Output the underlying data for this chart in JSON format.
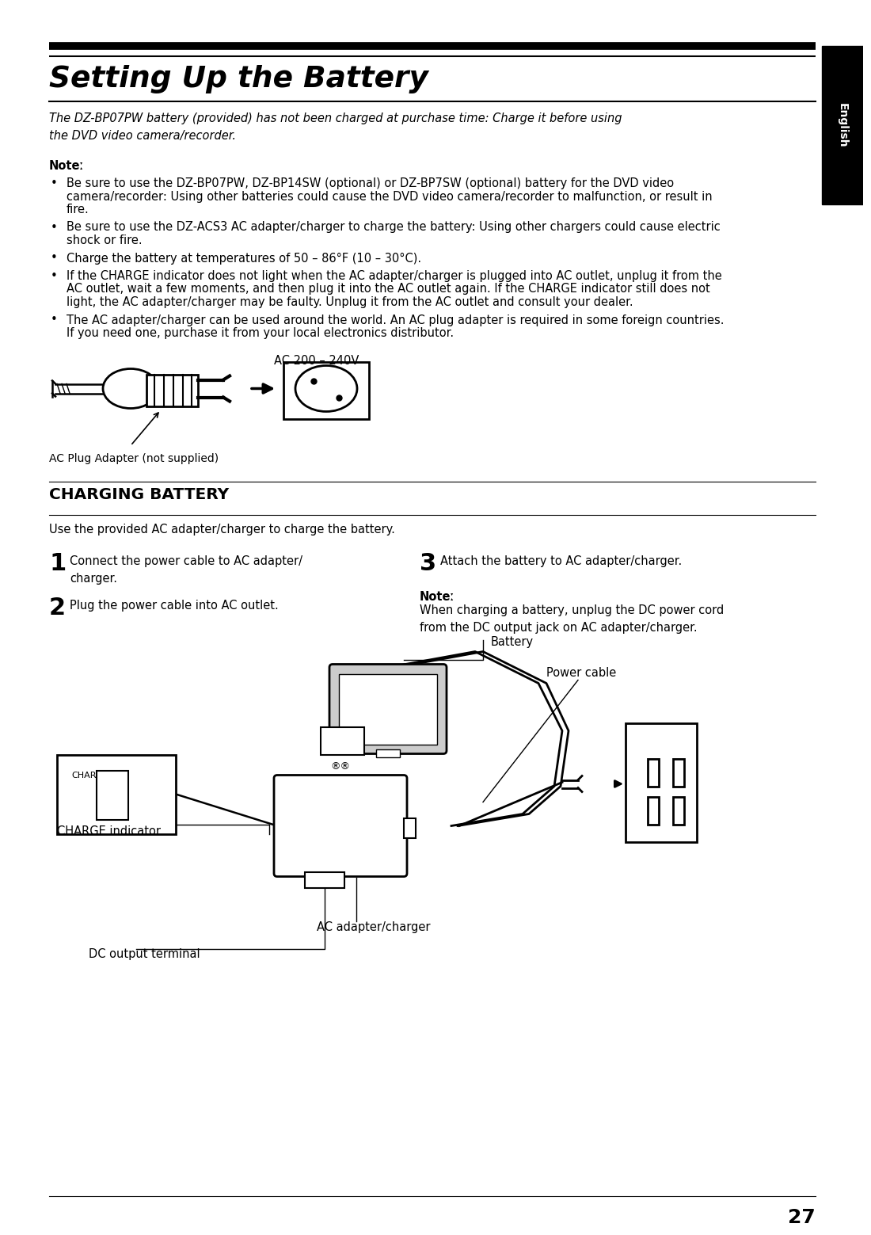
{
  "bg_color": "#ffffff",
  "title": "Setting Up the Battery",
  "sidebar_text": "English",
  "subtitle": "The DZ-BP07PW battery (provided) has not been charged at purchase time: Charge it before using\nthe DVD video camera/recorder.",
  "note_label": "Noteː",
  "bullets": [
    "Be sure to use the DZ-BP07PW, DZ-BP14SW (optional) or DZ-BP7SW (optional) battery for the DVD video\ncamera/recorder: Using other batteries could cause the DVD video camera/recorder to malfunction, or result in\nfire.",
    "Be sure to use the DZ-ACS3 AC adapter/charger to charge the battery: Using other chargers could cause electric\nshock or fire.",
    "Charge the battery at temperatures of 50 – 86°F (10 – 30°C).",
    "If the CHARGE indicator does not light when the AC adapter/charger is plugged into AC outlet, unplug it from the\nAC outlet, wait a few moments, and then plug it into the AC outlet again. If the CHARGE indicator still does not\nlight, the AC adapter/charger may be faulty. Unplug it from the AC outlet and consult your dealer.",
    "The AC adapter/charger can be used around the world. An AC plug adapter is required in some foreign countries.\nIf you need one, purchase it from your local electronics distributor."
  ],
  "ac_label": "AC 200 – 240V",
  "plug_caption": "AC Plug Adapter (not supplied)",
  "charging_title": "CHARGING BATTERY",
  "charging_intro": "Use the provided AC adapter/charger to charge the battery.",
  "step1_num": "1",
  "step1_text": "Connect the power cable to AC adapter/\ncharger.",
  "step2_num": "2",
  "step2_text": "Plug the power cable into AC outlet.",
  "step3_num": "3",
  "step3_text": "Attach the battery to AC adapter/charger.",
  "note2_label": "Noteː",
  "note2_text": "When charging a battery, unplug the DC power cord\nfrom the DC output jack on AC adapter/charger.",
  "diag_battery": "Battery",
  "diag_power_cable": "Power cable",
  "diag_charge_ind": "CHARGE indicator",
  "diag_ac_adapter": "AC adapter/charger",
  "diag_dc_terminal": "DC output terminal",
  "diag_charge_box": "CHARGE",
  "page_number": "27"
}
